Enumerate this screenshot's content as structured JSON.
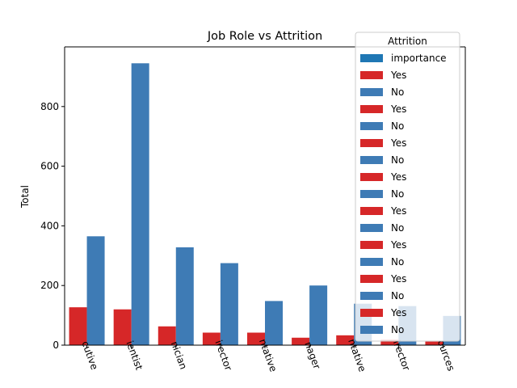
{
  "chart_data": {
    "type": "bar",
    "title": "Job Role vs Attrition",
    "xlabel": "",
    "ylabel": "Total",
    "ylim": [
      0,
      1000
    ],
    "yticks": [
      0,
      200,
      400,
      600,
      800
    ],
    "categories": [
      "cutive",
      "ientist",
      "nician",
      "irector",
      "ntative",
      "nager",
      "ntative",
      "irector",
      "ources"
    ],
    "series": [
      {
        "name": "Yes",
        "color": "#d62728",
        "values": [
          127,
          120,
          63,
          42,
          42,
          25,
          33,
          18,
          12
        ]
      },
      {
        "name": "No",
        "color": "#3e7bb5",
        "values": [
          365,
          945,
          328,
          275,
          148,
          200,
          139,
          131,
          98
        ]
      }
    ],
    "legend": {
      "title": "Attrition",
      "placement": "top-right",
      "entries": [
        {
          "label": "importance",
          "color": "#1f77b4"
        },
        {
          "label": "Yes",
          "color": "#d62728"
        },
        {
          "label": "No",
          "color": "#3e7bb5"
        },
        {
          "label": "Yes",
          "color": "#d62728"
        },
        {
          "label": "No",
          "color": "#3e7bb5"
        },
        {
          "label": "Yes",
          "color": "#d62728"
        },
        {
          "label": "No",
          "color": "#3e7bb5"
        },
        {
          "label": "Yes",
          "color": "#d62728"
        },
        {
          "label": "No",
          "color": "#3e7bb5"
        },
        {
          "label": "Yes",
          "color": "#d62728"
        },
        {
          "label": "No",
          "color": "#3e7bb5"
        },
        {
          "label": "Yes",
          "color": "#d62728"
        },
        {
          "label": "No",
          "color": "#3e7bb5"
        },
        {
          "label": "Yes",
          "color": "#d62728"
        },
        {
          "label": "No",
          "color": "#3e7bb5"
        },
        {
          "label": "Yes",
          "color": "#d62728"
        },
        {
          "label": "No",
          "color": "#3e7bb5"
        }
      ]
    },
    "grid": false
  }
}
